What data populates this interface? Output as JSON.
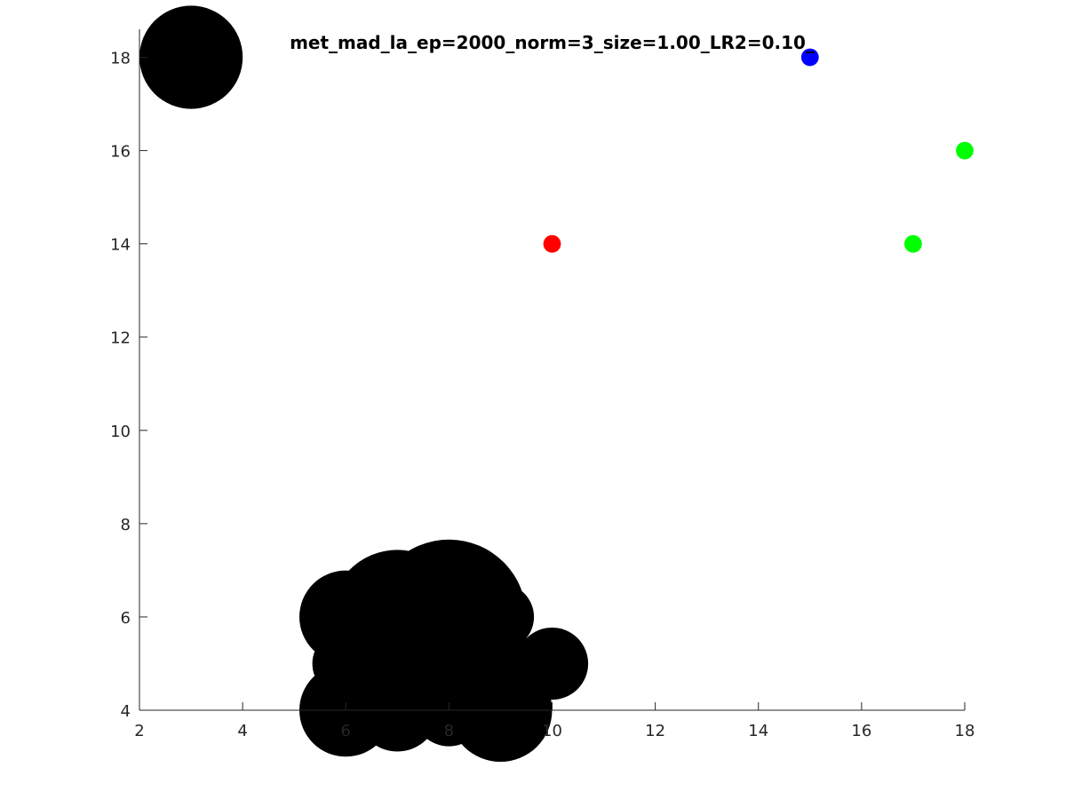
{
  "chart_data": {
    "type": "scatter",
    "title": "met_mad_la_ep=2000_norm=3_size=1.00_LR2=0.10_",
    "xlabel": "",
    "ylabel": "",
    "xlim": [
      2,
      18
    ],
    "ylim": [
      4,
      18.6
    ],
    "xticks": [
      2,
      4,
      6,
      8,
      10,
      12,
      14,
      16,
      18
    ],
    "yticks": [
      4,
      6,
      8,
      10,
      12,
      14,
      16,
      18
    ],
    "xtick_labels": [
      "2",
      "4",
      "6",
      "8",
      "10",
      "12",
      "14",
      "16",
      "18"
    ],
    "ytick_labels": [
      "4",
      "6",
      "8",
      "10",
      "12",
      "14",
      "16",
      "18"
    ],
    "grid": false,
    "box": false,
    "series": [
      {
        "color": "#000000",
        "points": [
          {
            "x": 3,
            "y": 18,
            "r": 1.0
          },
          {
            "x": 6,
            "y": 6,
            "r": 0.9
          },
          {
            "x": 7,
            "y": 6,
            "r": 1.3
          },
          {
            "x": 8,
            "y": 6,
            "r": 1.5
          },
          {
            "x": 9,
            "y": 6,
            "r": 0.65
          },
          {
            "x": 6,
            "y": 5,
            "r": 0.65
          },
          {
            "x": 7,
            "y": 5,
            "r": 0.8
          },
          {
            "x": 8,
            "y": 5,
            "r": 0.9
          },
          {
            "x": 9,
            "y": 5,
            "r": 0.7
          },
          {
            "x": 10,
            "y": 5,
            "r": 0.7
          },
          {
            "x": 6,
            "y": 4,
            "r": 0.9
          },
          {
            "x": 7,
            "y": 4,
            "r": 0.8
          },
          {
            "x": 8,
            "y": 4,
            "r": 0.7
          },
          {
            "x": 9,
            "y": 4,
            "r": 1.0
          }
        ]
      },
      {
        "color": "#ff0000",
        "points": [
          {
            "x": 10,
            "y": 14,
            "r": 0.17
          }
        ]
      },
      {
        "color": "#0000ff",
        "points": [
          {
            "x": 15,
            "y": 18,
            "r": 0.17
          }
        ]
      },
      {
        "color": "#00ff00",
        "points": [
          {
            "x": 17,
            "y": 14,
            "r": 0.17
          },
          {
            "x": 18,
            "y": 16,
            "r": 0.17
          }
        ]
      }
    ]
  }
}
